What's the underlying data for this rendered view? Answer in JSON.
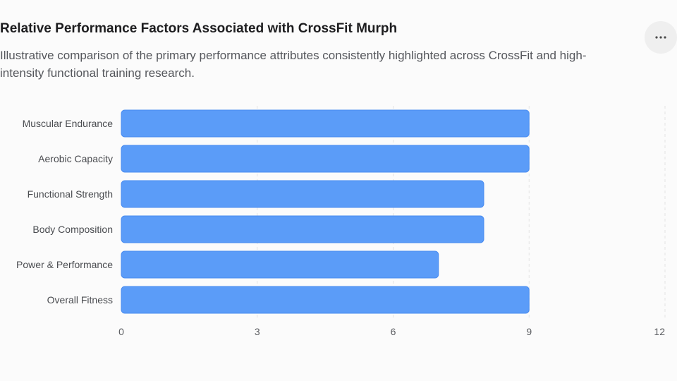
{
  "header": {
    "title": "Relative Performance Factors Associated with CrossFit Murph",
    "subtitle": "Illustrative comparison of the primary performance attributes consistently highlighted across CrossFit and high-intensity functional training research.",
    "more_icon": "more-horizontal-icon"
  },
  "chart_data": {
    "type": "bar",
    "orientation": "horizontal",
    "title": "Relative Performance Factors Associated with CrossFit Murph",
    "subtitle": "Illustrative comparison of the primary performance attributes consistently highlighted across CrossFit and high-intensity functional training research.",
    "xlabel": "",
    "ylabel": "",
    "categories": [
      "Muscular Endurance",
      "Aerobic Capacity",
      "Functional Strength",
      "Body Composition",
      "Power & Performance",
      "Overall Fitness"
    ],
    "values": [
      9,
      9,
      8,
      8,
      7,
      9
    ],
    "xlim": [
      0,
      12
    ],
    "xticks": [
      "0",
      "3",
      "6",
      "9",
      "12"
    ],
    "grid": true,
    "legend": "none",
    "bar_color": "#5b9cf8",
    "bar_border_color": "#4a8cf0"
  }
}
